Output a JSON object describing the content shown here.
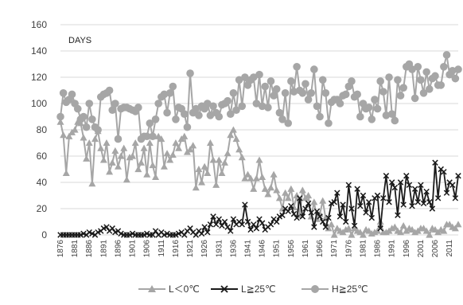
{
  "chart_data": {
    "type": "line",
    "title": "",
    "inner_label": "DAYS",
    "xlabel": "",
    "ylabel": "",
    "ylim": [
      0,
      160
    ],
    "yticks": [
      0,
      20,
      40,
      60,
      80,
      100,
      120,
      140,
      160
    ],
    "xlim": [
      1876,
      2014
    ],
    "xticks": [
      1876,
      1881,
      1886,
      1891,
      1896,
      1901,
      1906,
      1911,
      1916,
      1921,
      1926,
      1931,
      1936,
      1941,
      1946,
      1951,
      1956,
      1961,
      1966,
      1971,
      1976,
      1981,
      1986,
      1991,
      1996,
      2001,
      2006,
      2011
    ],
    "grid": "horizontal",
    "legend_position": "bottom",
    "start_year": 1876,
    "colors": {
      "l_below_0": "#a6a6a6",
      "l_above_25": "#1a1a1a",
      "h_above_25": "#a6a6a6"
    },
    "series": [
      {
        "name": "L＜0℃",
        "marker": "triangle",
        "values": [
          86,
          76,
          47,
          75,
          78,
          80,
          86,
          85,
          74,
          58,
          70,
          39,
          73,
          79,
          66,
          57,
          70,
          48,
          55,
          64,
          52,
          60,
          66,
          42,
          59,
          60,
          70,
          50,
          55,
          66,
          46,
          70,
          53,
          44,
          75,
          73,
          52,
          62,
          57,
          61,
          70,
          66,
          73,
          75,
          63,
          65,
          68,
          36,
          50,
          40,
          52,
          47,
          70,
          57,
          38,
          57,
          47,
          55,
          62,
          76,
          80,
          73,
          65,
          59,
          43,
          46,
          43,
          35,
          43,
          57,
          44,
          35,
          31,
          36,
          46,
          34,
          28,
          20,
          32,
          28,
          35,
          21,
          30,
          15,
          34,
          28,
          30,
          14,
          25,
          12,
          16,
          26,
          13,
          5,
          8,
          0,
          5,
          3,
          2,
          4,
          5,
          0,
          5,
          3,
          2,
          0,
          4,
          3,
          1,
          2,
          3,
          10,
          2,
          2,
          3,
          5,
          6,
          3,
          2,
          7,
          3,
          5,
          4,
          2,
          3,
          5,
          5,
          3,
          0,
          5,
          4,
          2,
          4,
          3,
          8,
          8,
          6,
          5,
          8
        ]
      },
      {
        "name": "L≧25℃",
        "marker": "x",
        "values": [
          0,
          0,
          0,
          0,
          0,
          0,
          0,
          0,
          1,
          0,
          2,
          1,
          0,
          2,
          3,
          5,
          6,
          3,
          5,
          2,
          3,
          1,
          0,
          0,
          0,
          1,
          0,
          0,
          0,
          0,
          1,
          0,
          0,
          3,
          0,
          2,
          0,
          1,
          0,
          0,
          0,
          1,
          2,
          0,
          3,
          5,
          2,
          0,
          3,
          1,
          6,
          2,
          8,
          14,
          8,
          12,
          7,
          10,
          6,
          3,
          12,
          8,
          10,
          8,
          23,
          10,
          4,
          8,
          5,
          12,
          9,
          4,
          6,
          8,
          12,
          10,
          14,
          15,
          20,
          18,
          22,
          16,
          13,
          28,
          14,
          20,
          24,
          17,
          6,
          18,
          14,
          10,
          6,
          13,
          24,
          25,
          32,
          14,
          23,
          10,
          38,
          20,
          7,
          35,
          22,
          30,
          17,
          25,
          13,
          28,
          30,
          5,
          28,
          45,
          25,
          40,
          36,
          15,
          40,
          23,
          45,
          38,
          22,
          35,
          25,
          38,
          24,
          33,
          25,
          20,
          55,
          28,
          50,
          48,
          32,
          40,
          38,
          28,
          45
        ]
      },
      {
        "name": "H≧25℃",
        "marker": "circle",
        "values": [
          90,
          108,
          101,
          103,
          107,
          100,
          96,
          88,
          90,
          82,
          100,
          88,
          82,
          80,
          105,
          107,
          108,
          110,
          95,
          100,
          73,
          96,
          97,
          97,
          96,
          95,
          94,
          97,
          73,
          75,
          75,
          85,
          75,
          88,
          100,
          105,
          107,
          93,
          108,
          113,
          88,
          97,
          96,
          92,
          82,
          123,
          93,
          96,
          91,
          98,
          96,
          100,
          91,
          98,
          93,
          90,
          99,
          100,
          102,
          92,
          108,
          95,
          118,
          98,
          120,
          114,
          118,
          120,
          100,
          122,
          98,
          113,
          97,
          117,
          106,
          111,
          93,
          88,
          108,
          85,
          117,
          109,
          128,
          110,
          108,
          115,
          103,
          108,
          126,
          98,
          90,
          118,
          108,
          85,
          101,
          103,
          103,
          100,
          106,
          107,
          113,
          117,
          105,
          107,
          90,
          100,
          96,
          97,
          88,
          103,
          96,
          117,
          109,
          91,
          120,
          92,
          87,
          118,
          106,
          112,
          128,
          130,
          126,
          104,
          128,
          118,
          108,
          124,
          111,
          119,
          121,
          114,
          114,
          128,
          137,
          122,
          125,
          119,
          126
        ]
      }
    ]
  }
}
